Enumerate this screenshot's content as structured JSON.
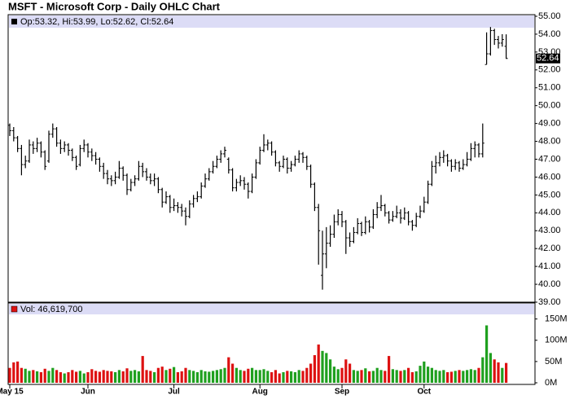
{
  "chart_data": [
    {
      "type": "ohlc",
      "title": "MSFT - Microsoft Corp - Daily OHLC Chart",
      "legend": "Op:53.32, Hi:53.99, Lo:52.62, Cl:52.64",
      "color": "#000000",
      "categories": [
        "May 15",
        null,
        null,
        null,
        null,
        null,
        null,
        null,
        null,
        null,
        null,
        null,
        null,
        null,
        null,
        null,
        null,
        null,
        null,
        null,
        "Jun",
        null,
        null,
        null,
        null,
        null,
        null,
        null,
        null,
        null,
        null,
        null,
        null,
        null,
        null,
        null,
        null,
        null,
        null,
        null,
        null,
        null,
        "Jul",
        null,
        null,
        null,
        null,
        null,
        null,
        null,
        null,
        null,
        null,
        null,
        null,
        null,
        null,
        null,
        null,
        null,
        null,
        null,
        null,
        null,
        "Aug",
        null,
        null,
        null,
        null,
        null,
        null,
        null,
        null,
        null,
        null,
        null,
        null,
        null,
        null,
        null,
        null,
        null,
        null,
        null,
        null,
        "Sep",
        null,
        null,
        null,
        null,
        null,
        null,
        null,
        null,
        null,
        null,
        null,
        null,
        null,
        null,
        null,
        null,
        null,
        null,
        null,
        null,
        "Oct",
        null,
        null,
        null,
        null,
        null,
        null,
        null,
        null,
        null,
        null,
        null,
        null,
        null,
        null,
        null,
        null,
        null,
        null,
        null,
        null,
        null
      ],
      "open": [
        48.9,
        48.6,
        48.2,
        47.6,
        46.7,
        46.9,
        47.8,
        47.6,
        47.9,
        47.4,
        46.9,
        48.4,
        48.7,
        47.9,
        47.6,
        47.8,
        47.5,
        47.1,
        46.7,
        47.6,
        47.8,
        47.4,
        47.2,
        47.0,
        46.6,
        46.2,
        45.9,
        45.8,
        46.0,
        46.5,
        46.1,
        45.3,
        45.7,
        45.9,
        46.6,
        46.3,
        46.0,
        45.8,
        45.9,
        45.3,
        44.6,
        44.9,
        44.3,
        44.4,
        44.3,
        44.1,
        43.8,
        44.5,
        44.8,
        44.9,
        45.5,
        45.9,
        46.3,
        46.6,
        47.0,
        47.3,
        47.0,
        46.4,
        45.4,
        45.7,
        45.8,
        45.6,
        45.2,
        46.0,
        46.8,
        47.5,
        47.8,
        47.9,
        47.4,
        46.8,
        46.6,
        47.0,
        46.5,
        46.7,
        47.0,
        47.3,
        47.1,
        46.6,
        45.6,
        44.3,
        40.5,
        41.7,
        42.3,
        42.8,
        43.5,
        43.9,
        43.5,
        42.6,
        42.4,
        42.9,
        43.4,
        42.9,
        43.5,
        43.2,
        43.9,
        44.3,
        44.4,
        44.0,
        43.6,
        43.8,
        44.0,
        43.7,
        44.0,
        43.5,
        43.3,
        43.8,
        44.1,
        44.6,
        45.6,
        46.6,
        46.8,
        47.1,
        47.2,
        46.9,
        46.6,
        46.8,
        46.5,
        46.7,
        47.0,
        47.6,
        47.8,
        47.3,
        52.3,
        52.9,
        54.2,
        53.7,
        53.5,
        53.32
      ],
      "high": [
        49.0,
        48.8,
        48.3,
        47.8,
        47.2,
        48.1,
        48.0,
        48.2,
        48.0,
        47.5,
        48.6,
        49.0,
        48.8,
        48.1,
        48.0,
        47.9,
        47.6,
        47.2,
        47.8,
        48.1,
        47.9,
        47.6,
        47.4,
        47.1,
        46.8,
        46.4,
        46.1,
        46.3,
        46.9,
        46.6,
        46.2,
        45.9,
        46.1,
        46.9,
        46.8,
        46.5,
        46.2,
        46.2,
        46.0,
        45.4,
        45.2,
        45.0,
        44.8,
        44.6,
        44.5,
        44.3,
        44.7,
        45.0,
        45.2,
        45.7,
        46.2,
        46.5,
        46.9,
        47.2,
        47.5,
        47.7,
        47.1,
        46.5,
        45.9,
        46.1,
        46.0,
        45.7,
        46.2,
        47.0,
        47.7,
        48.4,
        48.1,
        48.0,
        47.5,
        46.9,
        47.2,
        47.1,
        46.9,
        47.2,
        47.5,
        47.4,
        47.2,
        46.7,
        45.7,
        44.5,
        43.0,
        43.2,
        43.3,
        43.9,
        44.2,
        44.1,
        43.6,
        42.9,
        43.2,
        43.7,
        43.5,
        43.8,
        43.6,
        44.2,
        44.6,
        45.0,
        44.5,
        44.1,
        44.1,
        44.4,
        44.2,
        44.3,
        44.1,
        43.6,
        44.0,
        44.4,
        44.9,
        45.8,
        46.9,
        47.2,
        47.4,
        47.5,
        47.3,
        47.0,
        47.0,
        46.9,
        47.0,
        47.4,
        47.9,
        48.0,
        47.9,
        49.0,
        54.1,
        54.4,
        54.3,
        53.9,
        54.0,
        53.99
      ],
      "low": [
        48.3,
        48.0,
        47.4,
        46.1,
        46.5,
        46.8,
        47.3,
        47.4,
        47.1,
        46.4,
        46.8,
        48.2,
        47.7,
        47.3,
        47.4,
        47.2,
        46.9,
        46.4,
        46.6,
        47.4,
        47.1,
        46.9,
        46.7,
        46.3,
        45.9,
        45.6,
        45.5,
        45.6,
        45.9,
        45.8,
        45.0,
        45.2,
        45.5,
        45.8,
        46.0,
        45.8,
        45.6,
        45.5,
        45.1,
        44.3,
        44.5,
        44.0,
        44.1,
        44.0,
        43.8,
        43.3,
        43.7,
        44.3,
        44.6,
        44.8,
        45.4,
        45.8,
        46.2,
        46.5,
        46.8,
        47.1,
        46.2,
        45.2,
        45.2,
        45.5,
        45.3,
        44.8,
        45.1,
        45.9,
        46.7,
        47.4,
        47.5,
        47.2,
        46.6,
        46.3,
        46.5,
        46.2,
        46.3,
        46.6,
        46.8,
        46.8,
        46.4,
        45.4,
        44.1,
        41.1,
        39.7,
        40.9,
        42.1,
        42.6,
        43.3,
        43.2,
        41.7,
        42.1,
        42.3,
        42.8,
        42.7,
        42.8,
        42.9,
        43.1,
        43.7,
        44.1,
        43.8,
        43.4,
        43.5,
        43.7,
        43.4,
        43.6,
        43.3,
        43.0,
        43.2,
        43.7,
        44.0,
        44.5,
        45.5,
        46.2,
        46.6,
        46.8,
        46.6,
        46.3,
        46.4,
        46.3,
        46.4,
        46.6,
        46.9,
        47.1,
        47.1,
        47.1,
        52.3,
        52.8,
        53.4,
        53.2,
        53.3,
        52.62
      ],
      "close": [
        48.6,
        48.2,
        47.6,
        46.7,
        46.9,
        47.8,
        47.6,
        47.9,
        47.4,
        46.6,
        48.4,
        48.7,
        47.9,
        47.6,
        47.8,
        47.5,
        47.1,
        46.6,
        47.6,
        47.8,
        47.4,
        47.2,
        47.0,
        46.6,
        46.2,
        45.9,
        45.8,
        46.0,
        46.5,
        46.1,
        45.3,
        45.7,
        45.9,
        46.6,
        46.3,
        46.0,
        45.8,
        45.9,
        45.3,
        44.6,
        44.9,
        44.3,
        44.4,
        44.3,
        44.1,
        43.8,
        44.5,
        44.8,
        44.9,
        45.5,
        45.9,
        46.3,
        46.6,
        47.0,
        47.3,
        47.5,
        46.4,
        45.4,
        45.7,
        45.8,
        45.6,
        45.2,
        46.0,
        46.8,
        47.5,
        47.8,
        47.9,
        47.4,
        46.8,
        46.6,
        47.0,
        46.5,
        46.7,
        47.0,
        47.3,
        47.1,
        46.6,
        45.6,
        44.3,
        43.0,
        41.7,
        42.3,
        42.8,
        43.5,
        43.9,
        43.5,
        42.6,
        42.4,
        42.9,
        43.4,
        42.9,
        43.5,
        43.2,
        43.9,
        44.3,
        44.4,
        44.0,
        43.6,
        43.8,
        44.0,
        43.7,
        44.0,
        43.5,
        43.3,
        43.8,
        44.1,
        44.6,
        45.6,
        46.6,
        46.8,
        47.1,
        47.2,
        46.9,
        46.6,
        46.8,
        46.5,
        46.7,
        47.0,
        47.6,
        47.8,
        47.3,
        47.9,
        52.9,
        54.2,
        53.7,
        53.5,
        53.7,
        52.64
      ],
      "ylim": [
        39,
        55
      ],
      "yticks": [
        {
          "value": 39,
          "label": "39.00"
        },
        {
          "value": 40,
          "label": "40.00"
        },
        {
          "value": 41,
          "label": "41.00"
        },
        {
          "value": 42,
          "label": "42.00"
        },
        {
          "value": 43,
          "label": "43.00"
        },
        {
          "value": 44,
          "label": "44.00"
        },
        {
          "value": 45,
          "label": "45.00"
        },
        {
          "value": 46,
          "label": "46.00"
        },
        {
          "value": 47,
          "label": "47.00"
        },
        {
          "value": 48,
          "label": "48.00"
        },
        {
          "value": 49,
          "label": "49.00"
        },
        {
          "value": 50,
          "label": "50.00"
        },
        {
          "value": 51,
          "label": "51.00"
        },
        {
          "value": 52,
          "label": "52.00"
        },
        {
          "value": 53,
          "label": "53.00"
        },
        {
          "value": 54,
          "label": "54.00"
        },
        {
          "value": 55,
          "label": "55.00"
        }
      ]
    },
    {
      "type": "bar",
      "legend": "Vol: 46,619,700",
      "up_color": "#1fa01f",
      "down_color": "#dd1111",
      "values": [
        35,
        48,
        50,
        35,
        33,
        28,
        30,
        27,
        25,
        33,
        28,
        35,
        30,
        25,
        22,
        25,
        30,
        26,
        28,
        22,
        25,
        32,
        28,
        26,
        30,
        28,
        27,
        25,
        30,
        27,
        34,
        28,
        30,
        27,
        63,
        30,
        28,
        25,
        35,
        38,
        30,
        33,
        37,
        25,
        27,
        35,
        30,
        28,
        25,
        30,
        27,
        26,
        28,
        30,
        32,
        35,
        60,
        45,
        35,
        30,
        28,
        33,
        35,
        30,
        30,
        32,
        28,
        25,
        30,
        22,
        25,
        28,
        27,
        25,
        30,
        28,
        35,
        45,
        65,
        90,
        75,
        70,
        55,
        38,
        32,
        35,
        55,
        45,
        30,
        28,
        30,
        34,
        27,
        28,
        35,
        30,
        28,
        63,
        32,
        30,
        28,
        30,
        35,
        25,
        27,
        40,
        50,
        38,
        35,
        30,
        28,
        30,
        25,
        26,
        28,
        30,
        28,
        30,
        32,
        30,
        35,
        60,
        135,
        70,
        55,
        48,
        35,
        46.6197
      ],
      "ylim": [
        0,
        180
      ],
      "yticks": [
        {
          "value": 0,
          "label": "0M"
        },
        {
          "value": 50,
          "label": "50M"
        },
        {
          "value": 100,
          "label": "100M"
        },
        {
          "value": 150,
          "label": "150M"
        }
      ]
    }
  ]
}
